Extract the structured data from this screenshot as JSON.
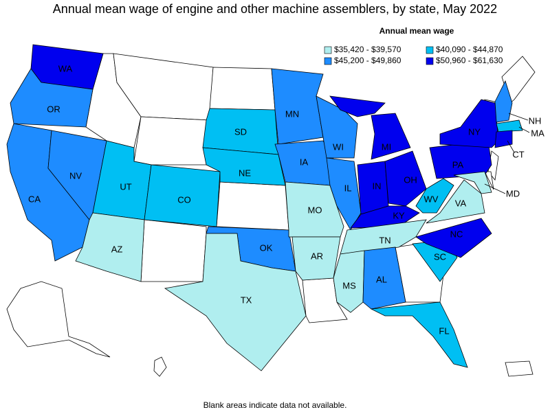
{
  "title": "Annual mean wage of engine and other machine assemblers, by state, May 2022",
  "legend": {
    "title": "Annual mean wage",
    "items": [
      {
        "label": "$35,420 - $39,570",
        "color": "#b0eeef",
        "states": [
          "AZ",
          "TX",
          "MO",
          "AR",
          "MS",
          "TN",
          "VA",
          "MD"
        ]
      },
      {
        "label": "$40,090 - $44,870",
        "color": "#00bff3",
        "states": [
          "UT",
          "CO",
          "SD",
          "NE",
          "WV",
          "SC",
          "FL",
          "MA"
        ]
      },
      {
        "label": "$45,200 - $49,860",
        "color": "#1e8cff",
        "states": [
          "OR",
          "CA",
          "NV",
          "MN",
          "IA",
          "WI",
          "IL",
          "AL",
          "OK",
          "NH"
        ]
      },
      {
        "label": "$50,960 - $61,630",
        "color": "#0000ee",
        "states": [
          "WA",
          "MI",
          "IN",
          "OH",
          "KY",
          "NY",
          "PA",
          "NC",
          "CT"
        ]
      }
    ]
  },
  "footnote": "Blank areas indicate data not available."
}
